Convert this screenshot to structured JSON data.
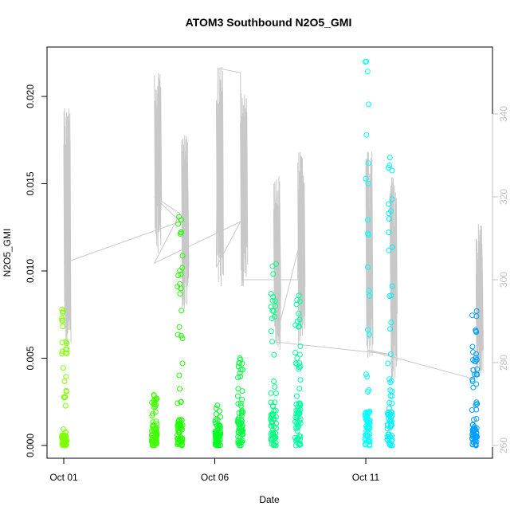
{
  "chart_data": {
    "type": "scatter",
    "title": "ATOM3 Southbound N2O5_GMI",
    "xlabel": "Date",
    "ylabel": "N2O5_GMI",
    "x_ticks": [
      "Oct 01",
      "Oct 06",
      "Oct 11"
    ],
    "x_tick_days": [
      1,
      6,
      11
    ],
    "xlim_days": [
      0.0,
      15.0
    ],
    "ylim": [
      -0.0003,
      0.0225
    ],
    "y_ticks": [
      "0.000",
      "0.005",
      "0.010",
      "0.015",
      "0.020"
    ],
    "y_tick_values": [
      0.0,
      0.005,
      0.01,
      0.015,
      0.02
    ],
    "y2_ticks": [
      "260",
      "280",
      "300",
      "320",
      "340"
    ],
    "y2_tick_values": [
      260,
      280,
      300,
      320,
      340
    ],
    "y2lim": [
      259.5,
      353
    ],
    "line_color": "#c8c8c8",
    "clusters": [
      {
        "day": 1.02,
        "color": "#7fff00",
        "min": 0.0,
        "max": 0.0078,
        "dense_low": 0.0006
      },
      {
        "day": 4.0,
        "color": "#40ff00",
        "min": 0.0,
        "max": 0.0029,
        "dense_low": 0.0012
      },
      {
        "day": 4.85,
        "color": "#20ff00",
        "min": 0.0,
        "max": 0.0131,
        "dense_low": 0.0015
      },
      {
        "day": 6.1,
        "color": "#00ff20",
        "min": 0.0,
        "max": 0.0023,
        "dense_low": 0.0008
      },
      {
        "day": 6.85,
        "color": "#00ff40",
        "min": 0.0,
        "max": 0.005,
        "dense_low": 0.0016
      },
      {
        "day": 7.95,
        "color": "#00ff80",
        "min": 0.0,
        "max": 0.0104,
        "dense_low": 0.0025
      },
      {
        "day": 8.75,
        "color": "#00ffa0",
        "min": 0.0,
        "max": 0.0086,
        "dense_low": 0.0025
      },
      {
        "day": 11.05,
        "color": "#00ffff",
        "min": 0.0,
        "max": 0.022,
        "dense_low": 0.002
      },
      {
        "day": 11.8,
        "color": "#00f0ff",
        "min": 0.0,
        "max": 0.0165,
        "dense_low": 0.0022
      },
      {
        "day": 14.6,
        "color": "#009fff",
        "min": 0.0,
        "max": 0.0077,
        "dense_low": 0.0012
      }
    ],
    "line_segments": [
      {
        "day": 1.0,
        "min": 283,
        "max": 343
      },
      {
        "day": 4.0,
        "min": 306,
        "max": 350
      },
      {
        "day": 4.9,
        "min": 293,
        "max": 335
      },
      {
        "day": 6.05,
        "min": 298,
        "max": 352
      },
      {
        "day": 6.85,
        "min": 298,
        "max": 346
      },
      {
        "day": 7.95,
        "min": 283,
        "max": 325
      },
      {
        "day": 8.75,
        "min": 284,
        "max": 331
      },
      {
        "day": 11.0,
        "min": 280,
        "max": 331
      },
      {
        "day": 11.8,
        "min": 276,
        "max": 325
      },
      {
        "day": 14.65,
        "min": 276,
        "max": 314
      }
    ],
    "connector_path": [
      [
        1.0,
        304
      ],
      [
        4.85,
        314
      ],
      [
        4.0,
        320
      ],
      [
        4.85,
        316
      ],
      [
        4.0,
        304
      ],
      [
        6.85,
        314
      ],
      [
        6.05,
        303
      ],
      [
        6.1,
        351
      ],
      [
        6.85,
        350
      ],
      [
        6.9,
        300
      ],
      [
        8.75,
        300
      ],
      [
        8.75,
        307
      ],
      [
        8.0,
        285
      ],
      [
        11.8,
        282
      ],
      [
        11.05,
        283
      ],
      [
        14.6,
        276
      ],
      [
        14.65,
        278
      ]
    ]
  }
}
